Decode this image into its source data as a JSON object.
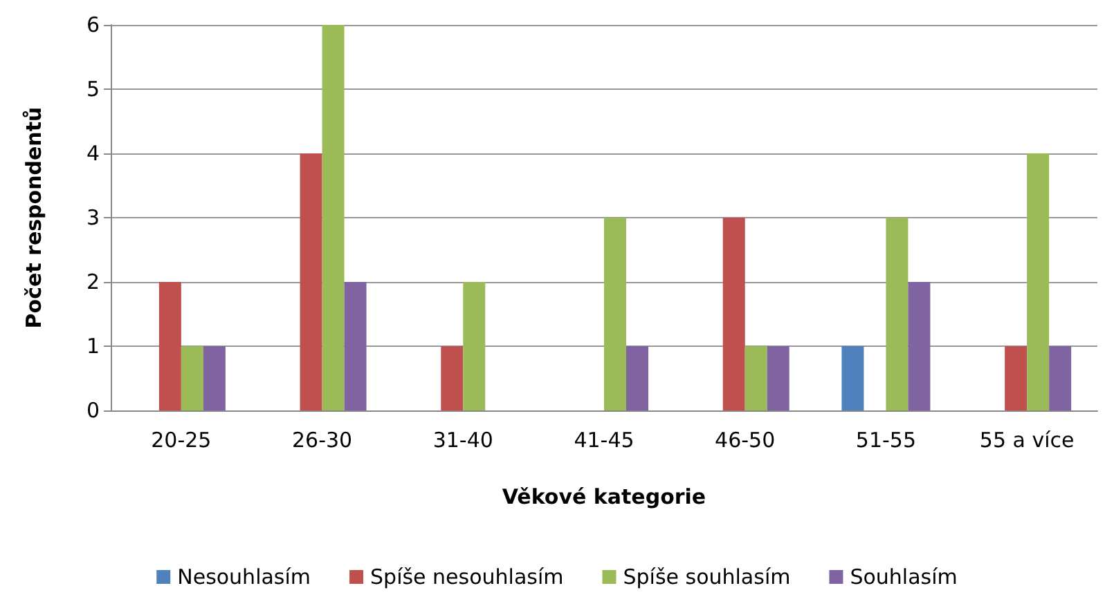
{
  "chart_data": {
    "type": "bar",
    "xlabel": "Věkové kategorie",
    "ylabel": "Počet respondentů",
    "categories": [
      "20-25",
      "26-30",
      "31-40",
      "41-45",
      "46-50",
      "51-55",
      "55 a více"
    ],
    "series": [
      {
        "name": "Nesouhlasím",
        "color": "#4f81bd",
        "values": [
          0,
          0,
          0,
          0,
          0,
          1,
          0
        ]
      },
      {
        "name": "Spíše nesouhlasím",
        "color": "#c0504d",
        "values": [
          2,
          4,
          1,
          0,
          3,
          0,
          1
        ]
      },
      {
        "name": "Spíše souhlasím",
        "color": "#9bbb59",
        "values": [
          1,
          6,
          2,
          3,
          1,
          3,
          4
        ]
      },
      {
        "name": "Souhlasím",
        "color": "#8064a2",
        "values": [
          1,
          2,
          0,
          1,
          1,
          2,
          1
        ]
      }
    ],
    "ylim": [
      0,
      6
    ],
    "yticks": [
      0,
      1,
      2,
      3,
      4,
      5,
      6
    ],
    "grid": "y",
    "legend": "bottom"
  }
}
